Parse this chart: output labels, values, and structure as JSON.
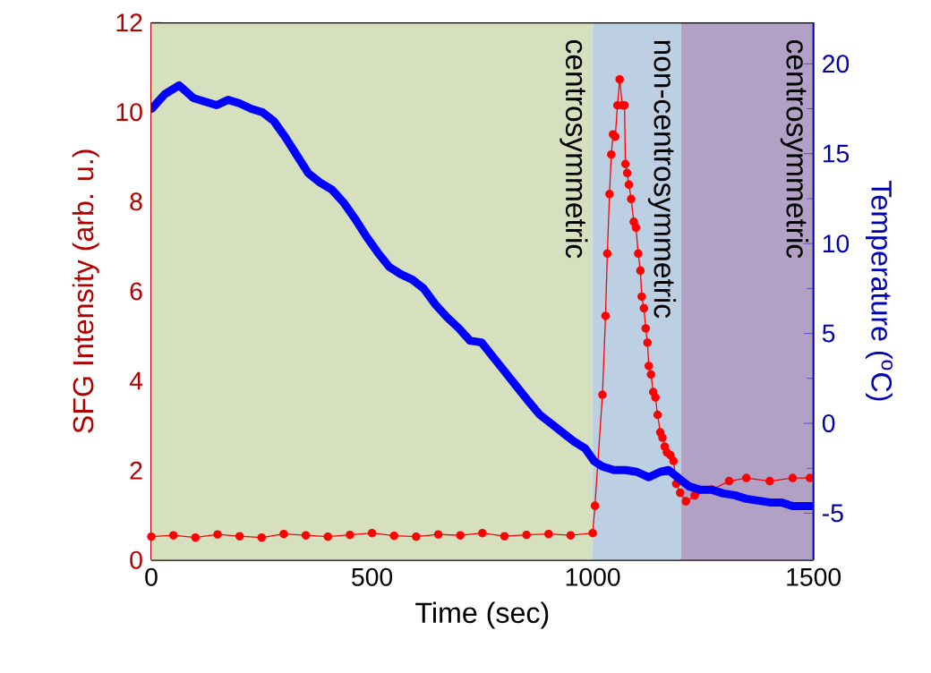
{
  "chart_data": {
    "type": "line",
    "xlabel": "Time (sec)",
    "ylabel": "SFG Intensity (arb. u.)",
    "y2label": "Temperature ($^{o}$C)",
    "xlim": [
      0,
      1500
    ],
    "xticks": [
      0,
      500,
      1000,
      1500
    ],
    "ylim": [
      0,
      12
    ],
    "yticks": [
      0,
      2,
      4,
      6,
      8,
      10,
      12
    ],
    "y2lim": [
      -7.6,
      22.3
    ],
    "y2ticks": [
      -5,
      0,
      5,
      10,
      15,
      20
    ],
    "bands": [
      {
        "axis": "x",
        "from": 0,
        "to": 1000,
        "label": "centrosymmetric",
        "color": "#d6e0bf"
      },
      {
        "axis": "x",
        "from": 1000,
        "to": 1200,
        "label": "non-centrosymmetric",
        "color": "#bccfe3"
      },
      {
        "axis": "x",
        "from": 1200,
        "to": 1500,
        "label": "centrosymmetric",
        "color": "#b2a0c5"
      }
    ],
    "series": [
      {
        "color": "#ff0000",
        "marker": "circle",
        "x": [
          0,
          50,
          100,
          150,
          200,
          250,
          300,
          350,
          400,
          450,
          500,
          550,
          600,
          650,
          700,
          750,
          800,
          850,
          900,
          950,
          1000,
          1005,
          1022,
          1029,
          1033,
          1038,
          1042,
          1046,
          1051,
          1056,
          1061,
          1067,
          1072,
          1074,
          1078,
          1082,
          1087,
          1093,
          1098,
          1103,
          1108,
          1111,
          1116,
          1120,
          1124,
          1127,
          1132,
          1137,
          1142,
          1147,
          1153,
          1158,
          1163,
          1168,
          1176,
          1183,
          1189,
          1198,
          1211,
          1231,
          1270,
          1309,
          1348,
          1401,
          1453,
          1492
        ],
        "values": [
          0.52,
          0.55,
          0.5,
          0.57,
          0.53,
          0.5,
          0.58,
          0.55,
          0.52,
          0.56,
          0.6,
          0.54,
          0.52,
          0.57,
          0.55,
          0.6,
          0.53,
          0.56,
          0.58,
          0.55,
          0.6,
          1.21,
          3.69,
          5.45,
          6.84,
          8.17,
          9.05,
          9.5,
          9.45,
          10.15,
          10.73,
          10.15,
          10.15,
          8.84,
          8.64,
          8.38,
          8.06,
          7.55,
          7.42,
          6.84,
          6.46,
          5.88,
          5.62,
          5.17,
          4.85,
          4.33,
          4.14,
          3.75,
          3.63,
          3.24,
          2.85,
          2.73,
          2.53,
          2.4,
          2.34,
          2.21,
          1.7,
          1.5,
          1.31,
          1.44,
          1.57,
          1.76,
          1.83,
          1.76,
          1.83,
          1.83
        ]
      },
      {
        "color": "#0000ff",
        "marker": "none",
        "axis": "y2",
        "x": [
          1,
          30,
          63,
          95,
          121,
          148,
          174,
          200,
          226,
          252,
          278,
          304,
          330,
          356,
          382,
          409,
          435,
          461,
          487,
          513,
          539,
          565,
          591,
          617,
          644,
          670,
          696,
          722,
          748,
          774,
          800,
          826,
          852,
          879,
          905,
          931,
          957,
          983,
          1003,
          1022,
          1048,
          1074,
          1100,
          1127,
          1153,
          1172,
          1192,
          1218,
          1244,
          1270,
          1296,
          1322,
          1348,
          1375,
          1401,
          1427,
          1453,
          1479,
          1495
        ],
        "values": [
          17.5,
          18.3,
          18.8,
          18.1,
          17.9,
          17.7,
          18.0,
          17.8,
          17.5,
          17.3,
          16.8,
          15.9,
          14.9,
          13.9,
          13.4,
          13.0,
          12.3,
          11.4,
          10.4,
          9.5,
          8.7,
          8.3,
          8.0,
          7.5,
          6.6,
          5.9,
          5.3,
          4.6,
          4.5,
          3.7,
          2.9,
          2.1,
          1.3,
          0.5,
          0.0,
          -0.5,
          -1.0,
          -1.4,
          -2.1,
          -2.4,
          -2.6,
          -2.6,
          -2.7,
          -3.0,
          -2.7,
          -2.6,
          -3.0,
          -3.5,
          -3.7,
          -3.7,
          -3.9,
          -4.0,
          -4.2,
          -4.3,
          -4.4,
          -4.4,
          -4.6,
          -4.6,
          -4.6
        ]
      }
    ]
  }
}
